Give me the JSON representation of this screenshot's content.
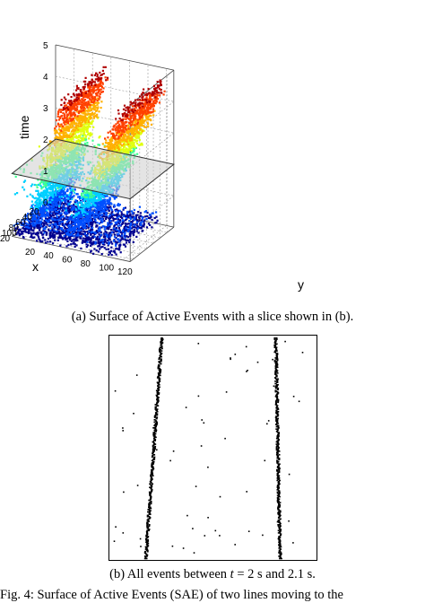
{
  "figure_a": {
    "z_label": "time",
    "x_label": "x",
    "y_label": "y",
    "z_ticks": [
      "0",
      "1",
      "2",
      "3",
      "4",
      "5"
    ],
    "x_ticks": [
      "20",
      "40",
      "60",
      "80",
      "100",
      "120"
    ],
    "y_ticks": [
      "20",
      "40",
      "60",
      "80",
      "100",
      "120"
    ],
    "slice_time": 2,
    "colors": [
      "#00008f",
      "#0050ff",
      "#00d0ff",
      "#40ff90",
      "#e0ff10",
      "#ffb000",
      "#ff4000",
      "#b00000"
    ]
  },
  "figure_b": {
    "line_left": {
      "x_top": 58,
      "x_bottom": 40
    },
    "line_right": {
      "x_top": 185,
      "x_bottom": 190
    }
  },
  "captions": {
    "a": "(a) Surface of Active Events with a slice shown in (b).",
    "b_prefix": "(b) All events between ",
    "b_t": "t",
    "b_mid": " = 2 s and 2.1 s.",
    "c": "Fig. 4: Surface of Active Events (SAE) of two lines moving to the"
  }
}
